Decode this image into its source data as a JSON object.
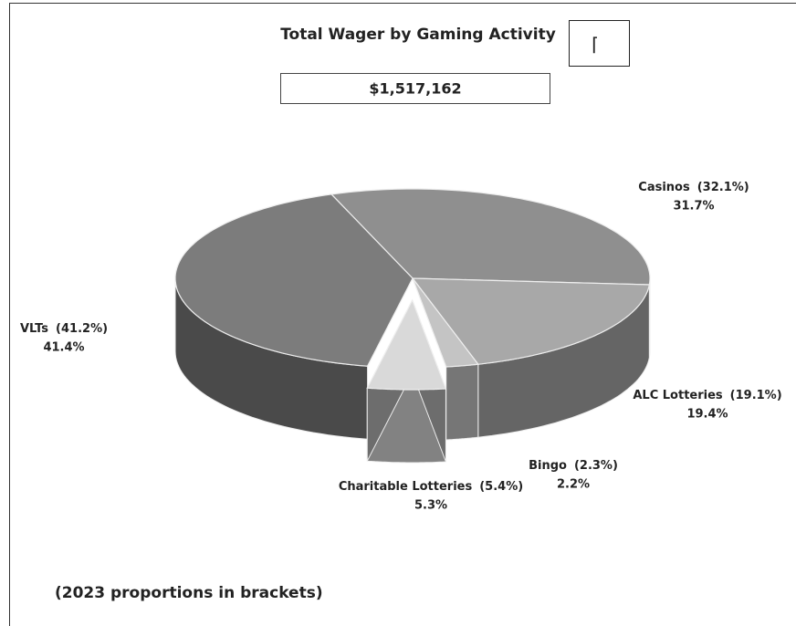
{
  "chart_data": {
    "type": "pie",
    "title": "Total Wager by Gaming Activity",
    "box_text": "⌈",
    "total": "$1,517,162",
    "footnote": "(2023 proportions in brackets)",
    "categories": [
      "Casinos",
      "ALC Lotteries",
      "Bingo",
      "Charitable Lotteries",
      "VLTs"
    ],
    "values": [
      31.7,
      19.4,
      2.2,
      5.3,
      41.4
    ],
    "value_labels": [
      "31.7%",
      "19.4%",
      "2.2%",
      "5.3%",
      "41.4%"
    ],
    "previous_values": [
      32.1,
      19.1,
      2.3,
      5.4,
      41.2
    ],
    "previous_value_labels": [
      "(32.1%)",
      "(19.1%)",
      "(2.3%)",
      "(5.4%)",
      "(41.2%)"
    ],
    "colors": [
      "#8f8f8f",
      "#a8a8a8",
      "#c4c4c4",
      "#d9d9d9",
      "#7c7c7c"
    ]
  }
}
